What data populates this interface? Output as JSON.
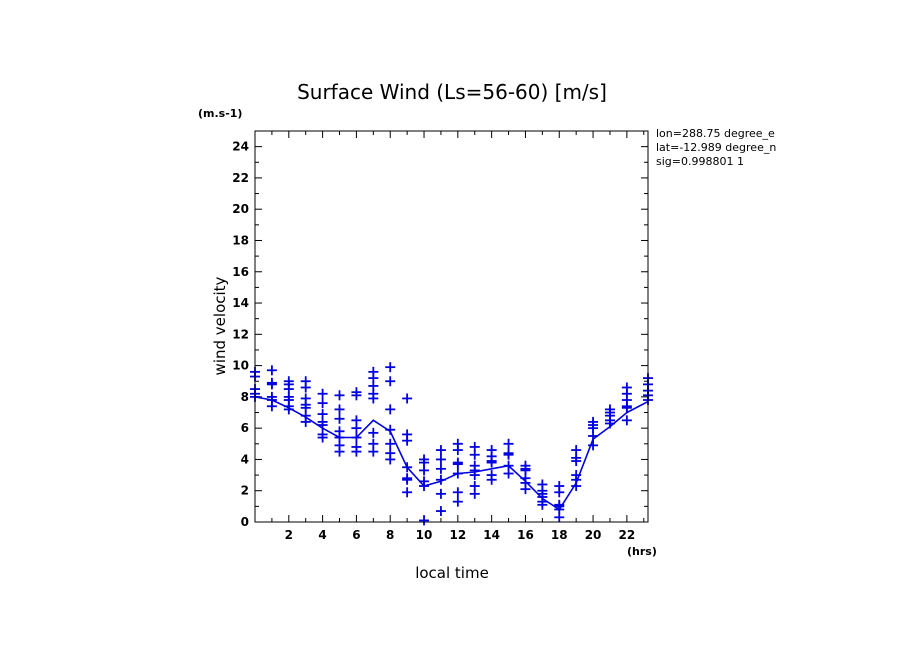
{
  "chart_data": {
    "type": "scatter",
    "title": "Surface Wind  (Ls=56-60) [m/s]",
    "xlabel": "local time",
    "ylabel": "wind velocity",
    "x_unit": "(hrs)",
    "y_unit": "(m.s-1)",
    "xlim": [
      0,
      23.25
    ],
    "ylim": [
      0,
      25
    ],
    "xticks": [
      2,
      4,
      6,
      8,
      10,
      12,
      14,
      16,
      18,
      20,
      22
    ],
    "yticks": [
      0,
      2,
      4,
      6,
      8,
      10,
      12,
      14,
      16,
      18,
      20,
      22,
      24
    ],
    "annotations": [
      "lon=288.75 degree_e",
      "lat=-12.989 degree_n",
      "sig=0.998801 1"
    ],
    "color": "#0000e0",
    "series": [
      {
        "type": "line",
        "x": [
          0.0,
          1.0,
          2.0,
          3.0,
          4.0,
          5.0,
          6.0,
          7.0,
          8.0,
          9.0,
          10.0,
          11.0,
          12.0,
          13.0,
          14.0,
          15.0,
          16.0,
          17.0,
          18.0,
          19.0,
          20.0,
          21.0,
          22.0,
          23.25
        ],
        "y": [
          8.0,
          7.8,
          7.3,
          6.7,
          6.0,
          5.4,
          5.4,
          6.5,
          5.8,
          3.5,
          2.3,
          2.6,
          3.1,
          3.2,
          3.4,
          3.6,
          2.6,
          1.5,
          0.8,
          2.5,
          5.3,
          6.1,
          7.0,
          7.7
        ]
      },
      {
        "type": "scatter",
        "marker": "+",
        "points": [
          [
            0.0,
            9.6
          ],
          [
            0.0,
            9.3
          ],
          [
            0.0,
            8.5
          ],
          [
            0.0,
            8.2
          ],
          [
            0.0,
            8.0
          ],
          [
            1.0,
            9.7
          ],
          [
            1.0,
            8.9
          ],
          [
            1.0,
            8.8
          ],
          [
            1.0,
            8.0
          ],
          [
            1.0,
            7.8
          ],
          [
            1.0,
            7.4
          ],
          [
            2.0,
            9.0
          ],
          [
            2.0,
            8.8
          ],
          [
            2.0,
            8.5
          ],
          [
            2.0,
            8.0
          ],
          [
            2.0,
            7.8
          ],
          [
            2.0,
            7.4
          ],
          [
            2.0,
            7.2
          ],
          [
            3.0,
            9.0
          ],
          [
            3.0,
            8.6
          ],
          [
            3.0,
            7.9
          ],
          [
            3.0,
            7.5
          ],
          [
            3.0,
            7.3
          ],
          [
            3.0,
            6.8
          ],
          [
            3.0,
            6.4
          ],
          [
            4.0,
            8.2
          ],
          [
            4.0,
            7.6
          ],
          [
            4.0,
            6.9
          ],
          [
            4.0,
            6.4
          ],
          [
            4.0,
            6.2
          ],
          [
            4.0,
            5.6
          ],
          [
            4.0,
            5.4
          ],
          [
            5.0,
            8.1
          ],
          [
            5.0,
            7.2
          ],
          [
            5.0,
            6.6
          ],
          [
            5.0,
            5.8
          ],
          [
            5.0,
            5.4
          ],
          [
            5.0,
            4.9
          ],
          [
            5.0,
            4.5
          ],
          [
            6.0,
            8.3
          ],
          [
            6.0,
            8.1
          ],
          [
            6.0,
            6.5
          ],
          [
            6.0,
            6.0
          ],
          [
            6.0,
            5.4
          ],
          [
            6.0,
            4.8
          ],
          [
            6.0,
            4.5
          ],
          [
            7.0,
            9.6
          ],
          [
            7.0,
            9.2
          ],
          [
            7.0,
            8.7
          ],
          [
            7.0,
            8.2
          ],
          [
            7.0,
            7.9
          ],
          [
            7.0,
            5.7
          ],
          [
            7.0,
            5.0
          ],
          [
            7.0,
            4.5
          ],
          [
            8.0,
            9.9
          ],
          [
            8.0,
            9.0
          ],
          [
            8.0,
            7.2
          ],
          [
            8.0,
            5.9
          ],
          [
            8.0,
            5.0
          ],
          [
            8.0,
            4.4
          ],
          [
            8.0,
            4.0
          ],
          [
            9.0,
            7.9
          ],
          [
            9.0,
            5.6
          ],
          [
            9.0,
            5.2
          ],
          [
            9.0,
            3.5
          ],
          [
            9.0,
            2.8
          ],
          [
            9.0,
            2.7
          ],
          [
            9.0,
            1.9
          ],
          [
            10.0,
            4.0
          ],
          [
            10.0,
            3.8
          ],
          [
            10.0,
            3.3
          ],
          [
            10.0,
            2.6
          ],
          [
            10.0,
            2.3
          ],
          [
            10.0,
            0.1
          ],
          [
            11.0,
            4.6
          ],
          [
            11.0,
            4.0
          ],
          [
            11.0,
            3.4
          ],
          [
            11.0,
            2.7
          ],
          [
            11.0,
            1.8
          ],
          [
            11.0,
            0.7
          ],
          [
            12.0,
            5.0
          ],
          [
            12.0,
            4.6
          ],
          [
            12.0,
            3.8
          ],
          [
            12.0,
            3.7
          ],
          [
            12.0,
            3.1
          ],
          [
            12.0,
            1.9
          ],
          [
            12.0,
            1.3
          ],
          [
            13.0,
            4.8
          ],
          [
            13.0,
            4.3
          ],
          [
            13.0,
            3.6
          ],
          [
            13.0,
            3.3
          ],
          [
            13.0,
            3.0
          ],
          [
            13.0,
            2.3
          ],
          [
            13.0,
            1.8
          ],
          [
            14.0,
            4.6
          ],
          [
            14.0,
            4.2
          ],
          [
            14.0,
            3.9
          ],
          [
            14.0,
            3.8
          ],
          [
            14.0,
            3.0
          ],
          [
            14.0,
            2.7
          ],
          [
            15.0,
            5.0
          ],
          [
            15.0,
            4.4
          ],
          [
            15.0,
            4.3
          ],
          [
            15.0,
            3.6
          ],
          [
            15.0,
            3.1
          ],
          [
            16.0,
            3.6
          ],
          [
            16.0,
            3.4
          ],
          [
            16.0,
            3.3
          ],
          [
            16.0,
            2.8
          ],
          [
            16.0,
            2.5
          ],
          [
            16.0,
            2.1
          ],
          [
            17.0,
            2.4
          ],
          [
            17.0,
            2.0
          ],
          [
            17.0,
            1.8
          ],
          [
            17.0,
            1.6
          ],
          [
            17.0,
            1.3
          ],
          [
            17.0,
            1.1
          ],
          [
            18.0,
            2.3
          ],
          [
            18.0,
            1.9
          ],
          [
            18.0,
            1.1
          ],
          [
            18.0,
            1.0
          ],
          [
            18.0,
            0.8
          ],
          [
            18.0,
            0.3
          ],
          [
            19.0,
            4.6
          ],
          [
            19.0,
            4.1
          ],
          [
            19.0,
            3.9
          ],
          [
            19.0,
            3.0
          ],
          [
            19.0,
            2.7
          ],
          [
            19.0,
            2.3
          ],
          [
            20.0,
            6.4
          ],
          [
            20.0,
            6.2
          ],
          [
            20.0,
            6.0
          ],
          [
            20.0,
            5.5
          ],
          [
            20.0,
            4.9
          ],
          [
            21.0,
            7.2
          ],
          [
            21.0,
            7.0
          ],
          [
            21.0,
            6.8
          ],
          [
            21.0,
            6.5
          ],
          [
            21.0,
            6.3
          ],
          [
            22.0,
            8.6
          ],
          [
            22.0,
            8.2
          ],
          [
            22.0,
            7.8
          ],
          [
            22.0,
            7.4
          ],
          [
            22.0,
            7.3
          ],
          [
            22.0,
            6.5
          ],
          [
            23.25,
            9.2
          ],
          [
            23.25,
            8.8
          ],
          [
            23.25,
            8.4
          ],
          [
            23.25,
            8.1
          ],
          [
            23.25,
            7.8
          ]
        ]
      }
    ]
  }
}
